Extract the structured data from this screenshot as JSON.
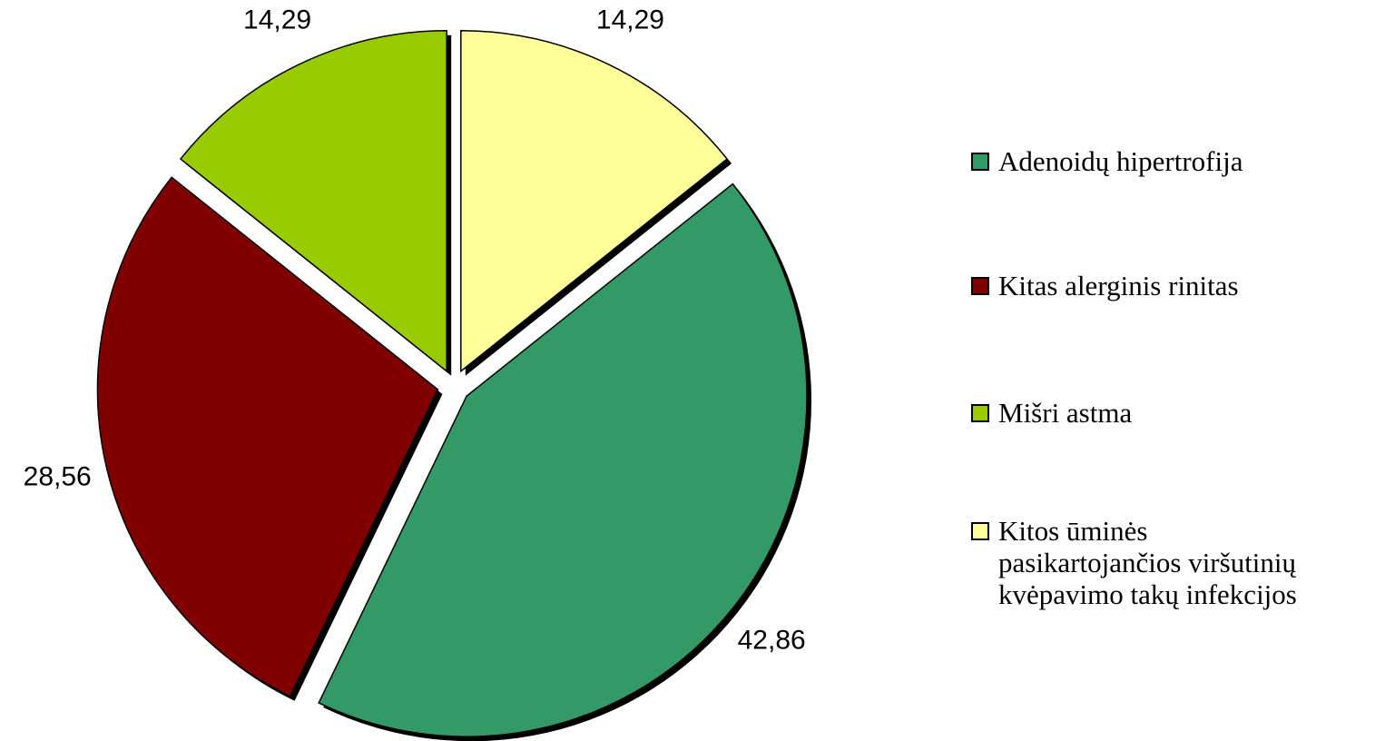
{
  "chart_data": {
    "type": "pie",
    "categories": [
      "Adenoidų hipertrofija",
      "Kitas alerginis rinitas",
      "Mišri astma",
      "Kitos ūminės pasikartojančios viršutinių kvėpavimo takų infekcijos"
    ],
    "values": [
      42.86,
      28.56,
      14.29,
      14.29
    ],
    "value_labels": [
      "42,86",
      "28,56",
      "14,29",
      "14,29"
    ],
    "colors": [
      "#339966",
      "#800000",
      "#99cc00",
      "#ffff99"
    ],
    "legend": "right"
  }
}
